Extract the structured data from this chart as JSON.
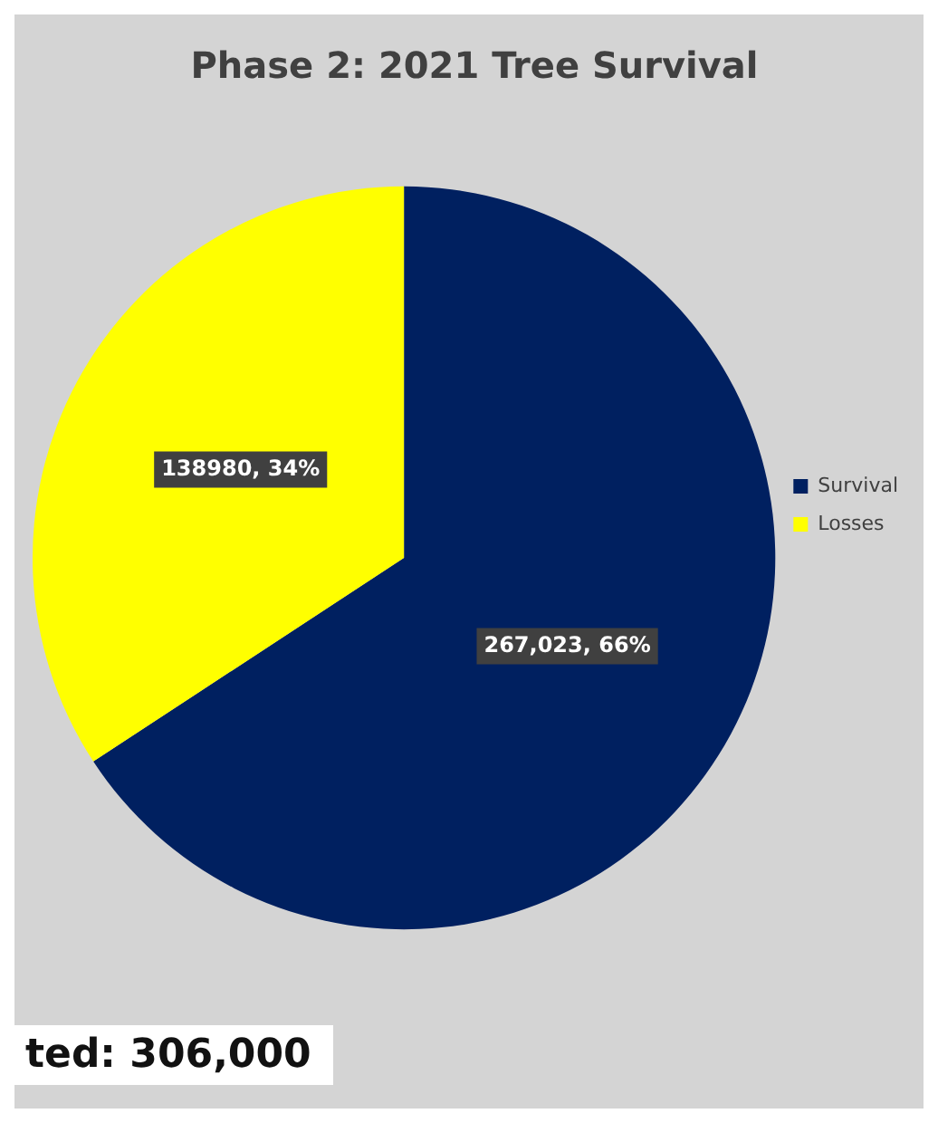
{
  "chart_data": {
    "type": "pie",
    "title": "Phase 2: 2021 Tree Survival",
    "categories": [
      "Survival",
      "Losses"
    ],
    "values": [
      267023,
      138980
    ],
    "colors": [
      "#002060",
      "#ffff00"
    ],
    "value_labels": [
      "267,023, 66%",
      "138980, 34%"
    ],
    "legend": "right",
    "annotations": [
      "ted: 306,000"
    ]
  }
}
